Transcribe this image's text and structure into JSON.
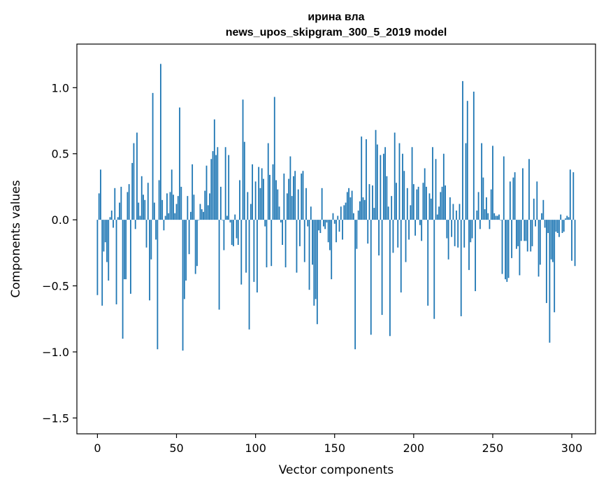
{
  "chart_data": {
    "type": "bar",
    "title_lines": [
      "ирина вла",
      "news_upos_skipgram_300_5_2019 model"
    ],
    "xlabel": "Vector components",
    "ylabel": "Components values",
    "xlim": [
      -13,
      315
    ],
    "ylim": [
      -1.62,
      1.33
    ],
    "xticks": [
      0,
      50,
      100,
      150,
      200,
      250,
      300
    ],
    "xtick_labels": [
      "0",
      "50",
      "100",
      "150",
      "200",
      "250",
      "300"
    ],
    "yticks": [
      -1.5,
      -1.0,
      -0.5,
      0.0,
      0.5,
      1.0
    ],
    "ytick_labels": [
      "−1.5",
      "−1.0",
      "−0.5",
      "0.0",
      "0.5",
      "1.0"
    ],
    "grid": false,
    "bar_color": "#1f77b4",
    "values": [
      -0.57,
      0.2,
      0.38,
      -0.65,
      -0.24,
      -0.17,
      -0.32,
      -0.46,
      0.02,
      0.07,
      -0.06,
      0.24,
      -0.64,
      0.02,
      0.13,
      0.25,
      -0.9,
      -0.45,
      -0.45,
      0.21,
      0.27,
      -0.56,
      0.43,
      0.58,
      -0.07,
      0.66,
      0.13,
      0.03,
      0.33,
      0.19,
      0.15,
      -0.21,
      0.28,
      -0.61,
      -0.3,
      0.96,
      0.13,
      -0.15,
      -0.98,
      0.3,
      1.18,
      0.15,
      -0.08,
      0.03,
      0.2,
      0.05,
      0.21,
      0.38,
      0.19,
      0.05,
      0.12,
      0.18,
      0.85,
      0.25,
      -0.99,
      -0.6,
      -0.46,
      0.18,
      -0.26,
      0.06,
      0.42,
      0.19,
      -0.41,
      -0.35,
      0.0,
      0.12,
      0.08,
      0.06,
      0.22,
      0.41,
      0.11,
      0.2,
      0.46,
      0.52,
      0.76,
      0.49,
      0.55,
      -0.68,
      0.25,
      0.0,
      -0.23,
      0.55,
      0.03,
      0.49,
      -0.02,
      -0.19,
      -0.2,
      0.04,
      -0.14,
      -0.19,
      0.3,
      -0.49,
      0.91,
      0.59,
      -0.4,
      0.21,
      -0.83,
      0.12,
      0.42,
      -0.47,
      0.29,
      -0.55,
      0.4,
      0.24,
      0.39,
      0.31,
      -0.05,
      -0.36,
      0.58,
      0.34,
      -0.35,
      0.42,
      0.93,
      0.3,
      0.23,
      0.1,
      -0.02,
      -0.19,
      0.35,
      -0.36,
      0.2,
      0.31,
      0.48,
      0.18,
      0.33,
      0.37,
      -0.4,
      0.23,
      -0.2,
      0.35,
      0.37,
      -0.32,
      0.24,
      -0.05,
      -0.53,
      0.1,
      -0.34,
      -0.65,
      -0.6,
      -0.79,
      -0.08,
      -0.1,
      0.24,
      -0.05,
      -0.07,
      -0.02,
      -0.17,
      -0.23,
      -0.45,
      0.05,
      -0.03,
      -0.17,
      0.03,
      -0.09,
      0.1,
      -0.15,
      0.11,
      0.13,
      0.21,
      0.24,
      0.17,
      0.22,
      0.05,
      -0.98,
      -0.22,
      0.07,
      0.14,
      0.63,
      0.17,
      0.15,
      0.61,
      -0.18,
      0.27,
      -0.87,
      0.26,
      0.09,
      0.68,
      0.57,
      -0.27,
      0.49,
      -0.72,
      0.5,
      0.55,
      0.33,
      0.1,
      -0.88,
      0.18,
      -0.25,
      0.66,
      0.28,
      -0.21,
      0.58,
      -0.55,
      0.5,
      0.37,
      -0.32,
      0.24,
      -0.15,
      0.11,
      0.55,
      0.27,
      -0.12,
      0.23,
      0.25,
      -0.04,
      -0.16,
      0.28,
      0.39,
      0.25,
      -0.65,
      0.2,
      0.16,
      0.55,
      -0.75,
      0.46,
      0.04,
      0.1,
      0.21,
      0.25,
      0.5,
      0.26,
      -0.14,
      -0.3,
      0.17,
      -0.13,
      0.12,
      -0.2,
      0.07,
      -0.21,
      0.12,
      -0.73,
      1.05,
      -0.21,
      0.58,
      0.9,
      -0.38,
      -0.17,
      -0.14,
      0.97,
      -0.54,
      0.07,
      0.21,
      -0.07,
      0.58,
      0.32,
      0.08,
      0.17,
      0.05,
      -0.07,
      0.23,
      0.56,
      0.05,
      0.03,
      0.03,
      0.04,
      0.0,
      -0.41,
      0.48,
      -0.45,
      -0.47,
      -0.44,
      0.29,
      -0.29,
      0.32,
      0.36,
      -0.22,
      -0.2,
      -0.42,
      -0.16,
      0.39,
      -0.16,
      -0.16,
      -0.24,
      0.46,
      -0.24,
      -0.2,
      0.16,
      -0.05,
      0.29,
      -0.43,
      -0.34,
      0.05,
      0.15,
      -0.06,
      -0.63,
      -0.1,
      -0.93,
      -0.3,
      -0.32,
      -0.7,
      -0.09,
      -0.1,
      -0.13,
      0.04,
      -0.1,
      -0.09,
      0.01,
      0.03,
      0.02,
      0.38,
      -0.31,
      0.36,
      -0.35
    ]
  }
}
